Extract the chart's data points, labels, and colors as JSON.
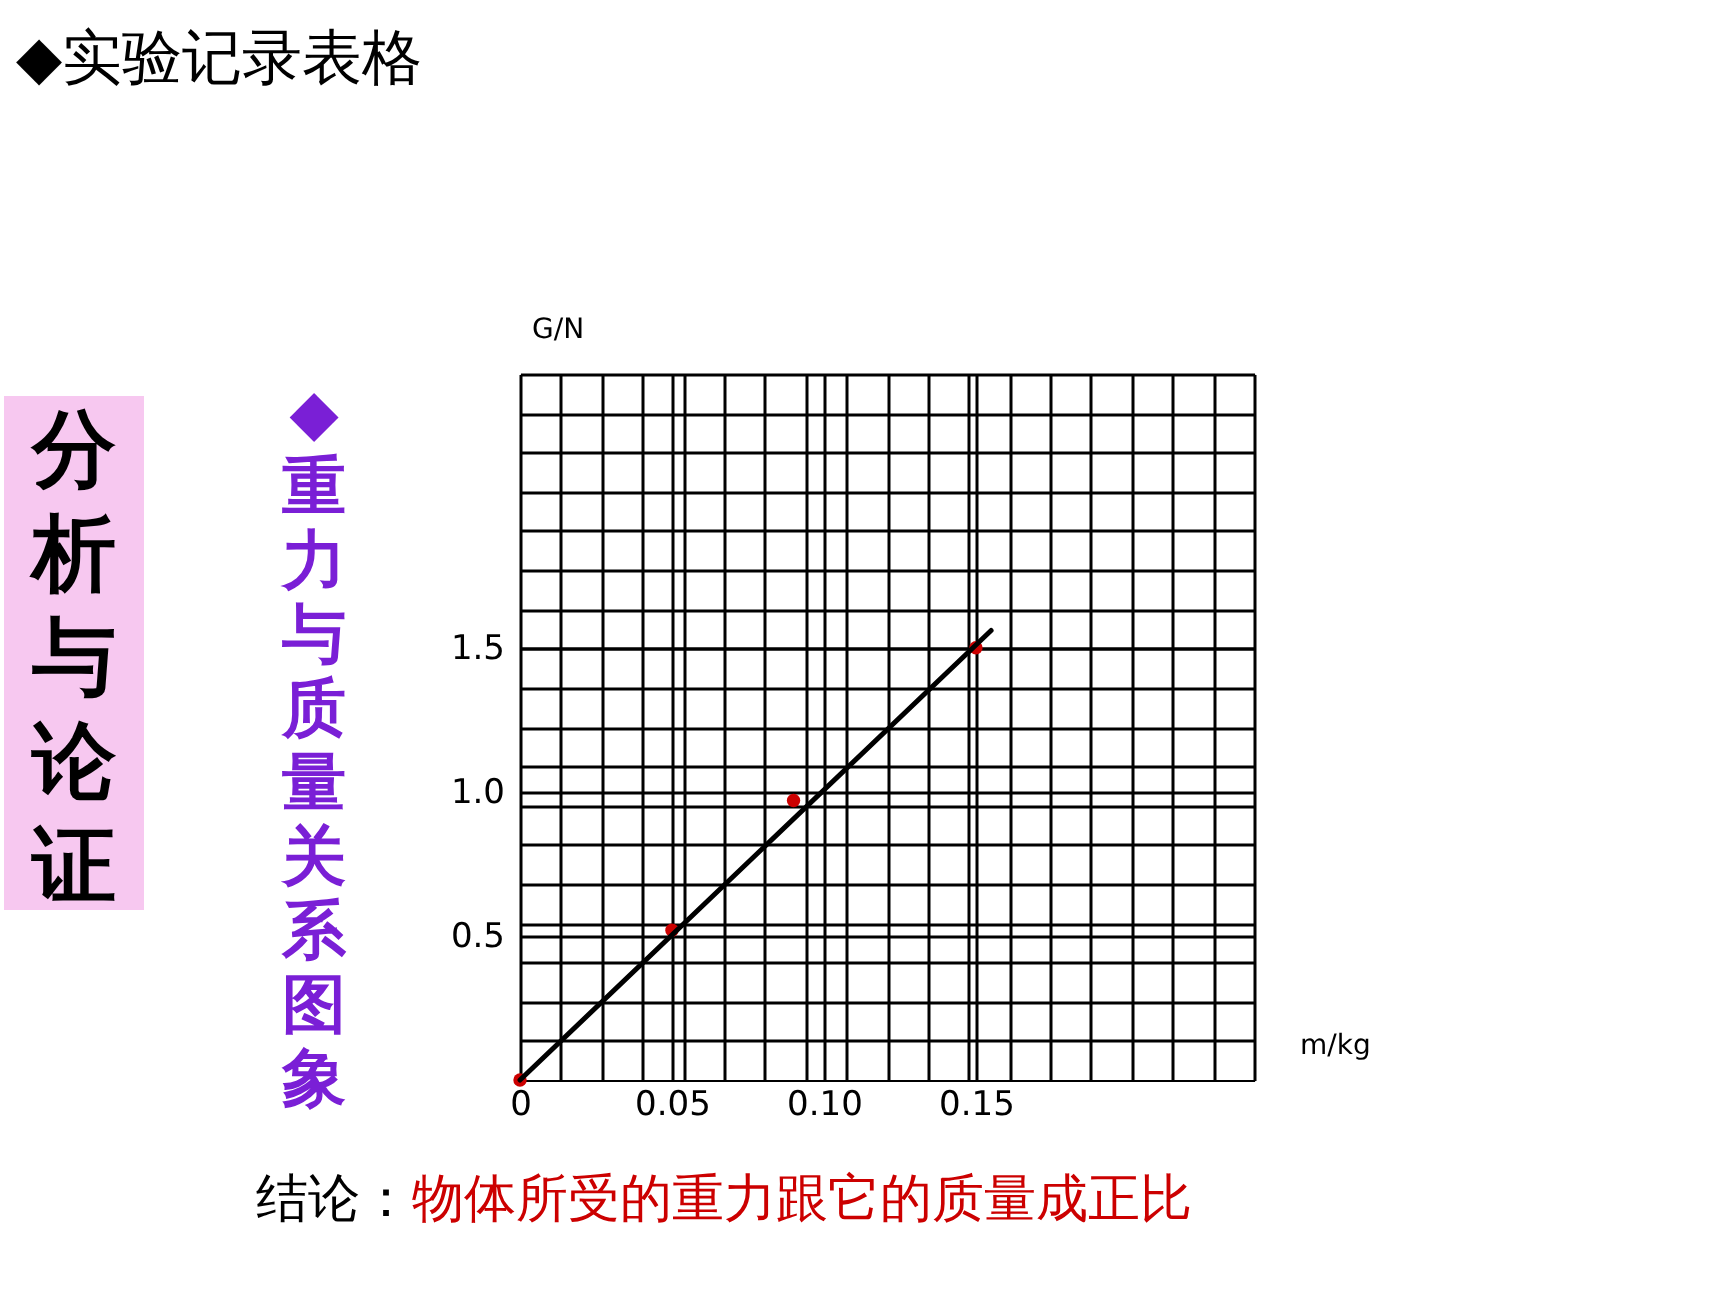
{
  "chart_data": {
    "type": "scatter",
    "title": "◆实验记录表格",
    "xlabel": "m/kg",
    "ylabel": "G/N",
    "annotations": [
      "分析与论证",
      "◆重力与质量关系图象",
      "结论：物体所受的重力跟它的质量成正比"
    ],
    "x": [
      0,
      0.05,
      0.09,
      0.15
    ],
    "series": [
      {
        "color": "#cc0000",
        "values": [
          0,
          0.52,
          0.97,
          1.5
        ]
      },
      {
        "type": "line",
        "marker": "none",
        "color": "#000000",
        "x": [
          0,
          0.155
        ],
        "values": [
          0,
          1.56
        ]
      }
    ],
    "xlim": [
      0,
      0.2415
    ],
    "ylim": [
      0,
      2.45
    ],
    "xticks": [
      0,
      {
        "value": 0.0134,
        "label": null
      },
      {
        "value": 0.0268,
        "label": null
      },
      {
        "value": 0.0402,
        "label": null
      },
      0.05,
      {
        "value": 0.0537,
        "label": null
      },
      {
        "value": 0.0671,
        "label": null
      },
      {
        "value": 0.0805,
        "label": null
      },
      {
        "value": 0.0939,
        "label": null
      },
      {
        "value": 0.1,
        "label": "0.10"
      },
      {
        "value": 0.1073,
        "label": null
      },
      {
        "value": 0.1208,
        "label": null
      },
      {
        "value": 0.1342,
        "label": null
      },
      {
        "value": 0.1476,
        "label": null
      },
      0.15,
      {
        "value": 0.161,
        "label": null
      },
      {
        "value": 0.1744,
        "label": null
      },
      {
        "value": 0.1878,
        "label": null
      },
      {
        "value": 0.2013,
        "label": null
      },
      {
        "value": 0.2147,
        "label": null
      },
      {
        "value": 0.2281,
        "label": null
      },
      {
        "value": 0.2415,
        "label": null
      }
    ],
    "yticks": [
      {
        "value": 0.136,
        "label": null
      },
      {
        "value": 0.272,
        "label": null
      },
      {
        "value": 0.408,
        "label": null
      },
      0.5,
      {
        "value": 0.544,
        "label": null
      },
      {
        "value": 0.681,
        "label": null
      },
      {
        "value": 0.817,
        "label": null
      },
      {
        "value": 0.953,
        "label": null
      },
      {
        "value": 1.0,
        "label": "1.0"
      },
      {
        "value": 1.089,
        "label": null
      },
      {
        "value": 1.225,
        "label": null
      },
      {
        "value": 1.361,
        "label": null
      },
      {
        "value": 1.497,
        "label": null
      },
      1.5,
      {
        "value": 1.633,
        "label": null
      },
      {
        "value": 1.769,
        "label": null
      },
      {
        "value": 1.906,
        "label": null
      },
      {
        "value": 2.042,
        "label": null
      },
      {
        "value": 2.178,
        "label": null
      },
      {
        "value": 2.314,
        "label": null
      },
      {
        "value": 2.45,
        "label": null
      }
    ],
    "grid": true,
    "marker": "circle",
    "line_style": "solid"
  }
}
